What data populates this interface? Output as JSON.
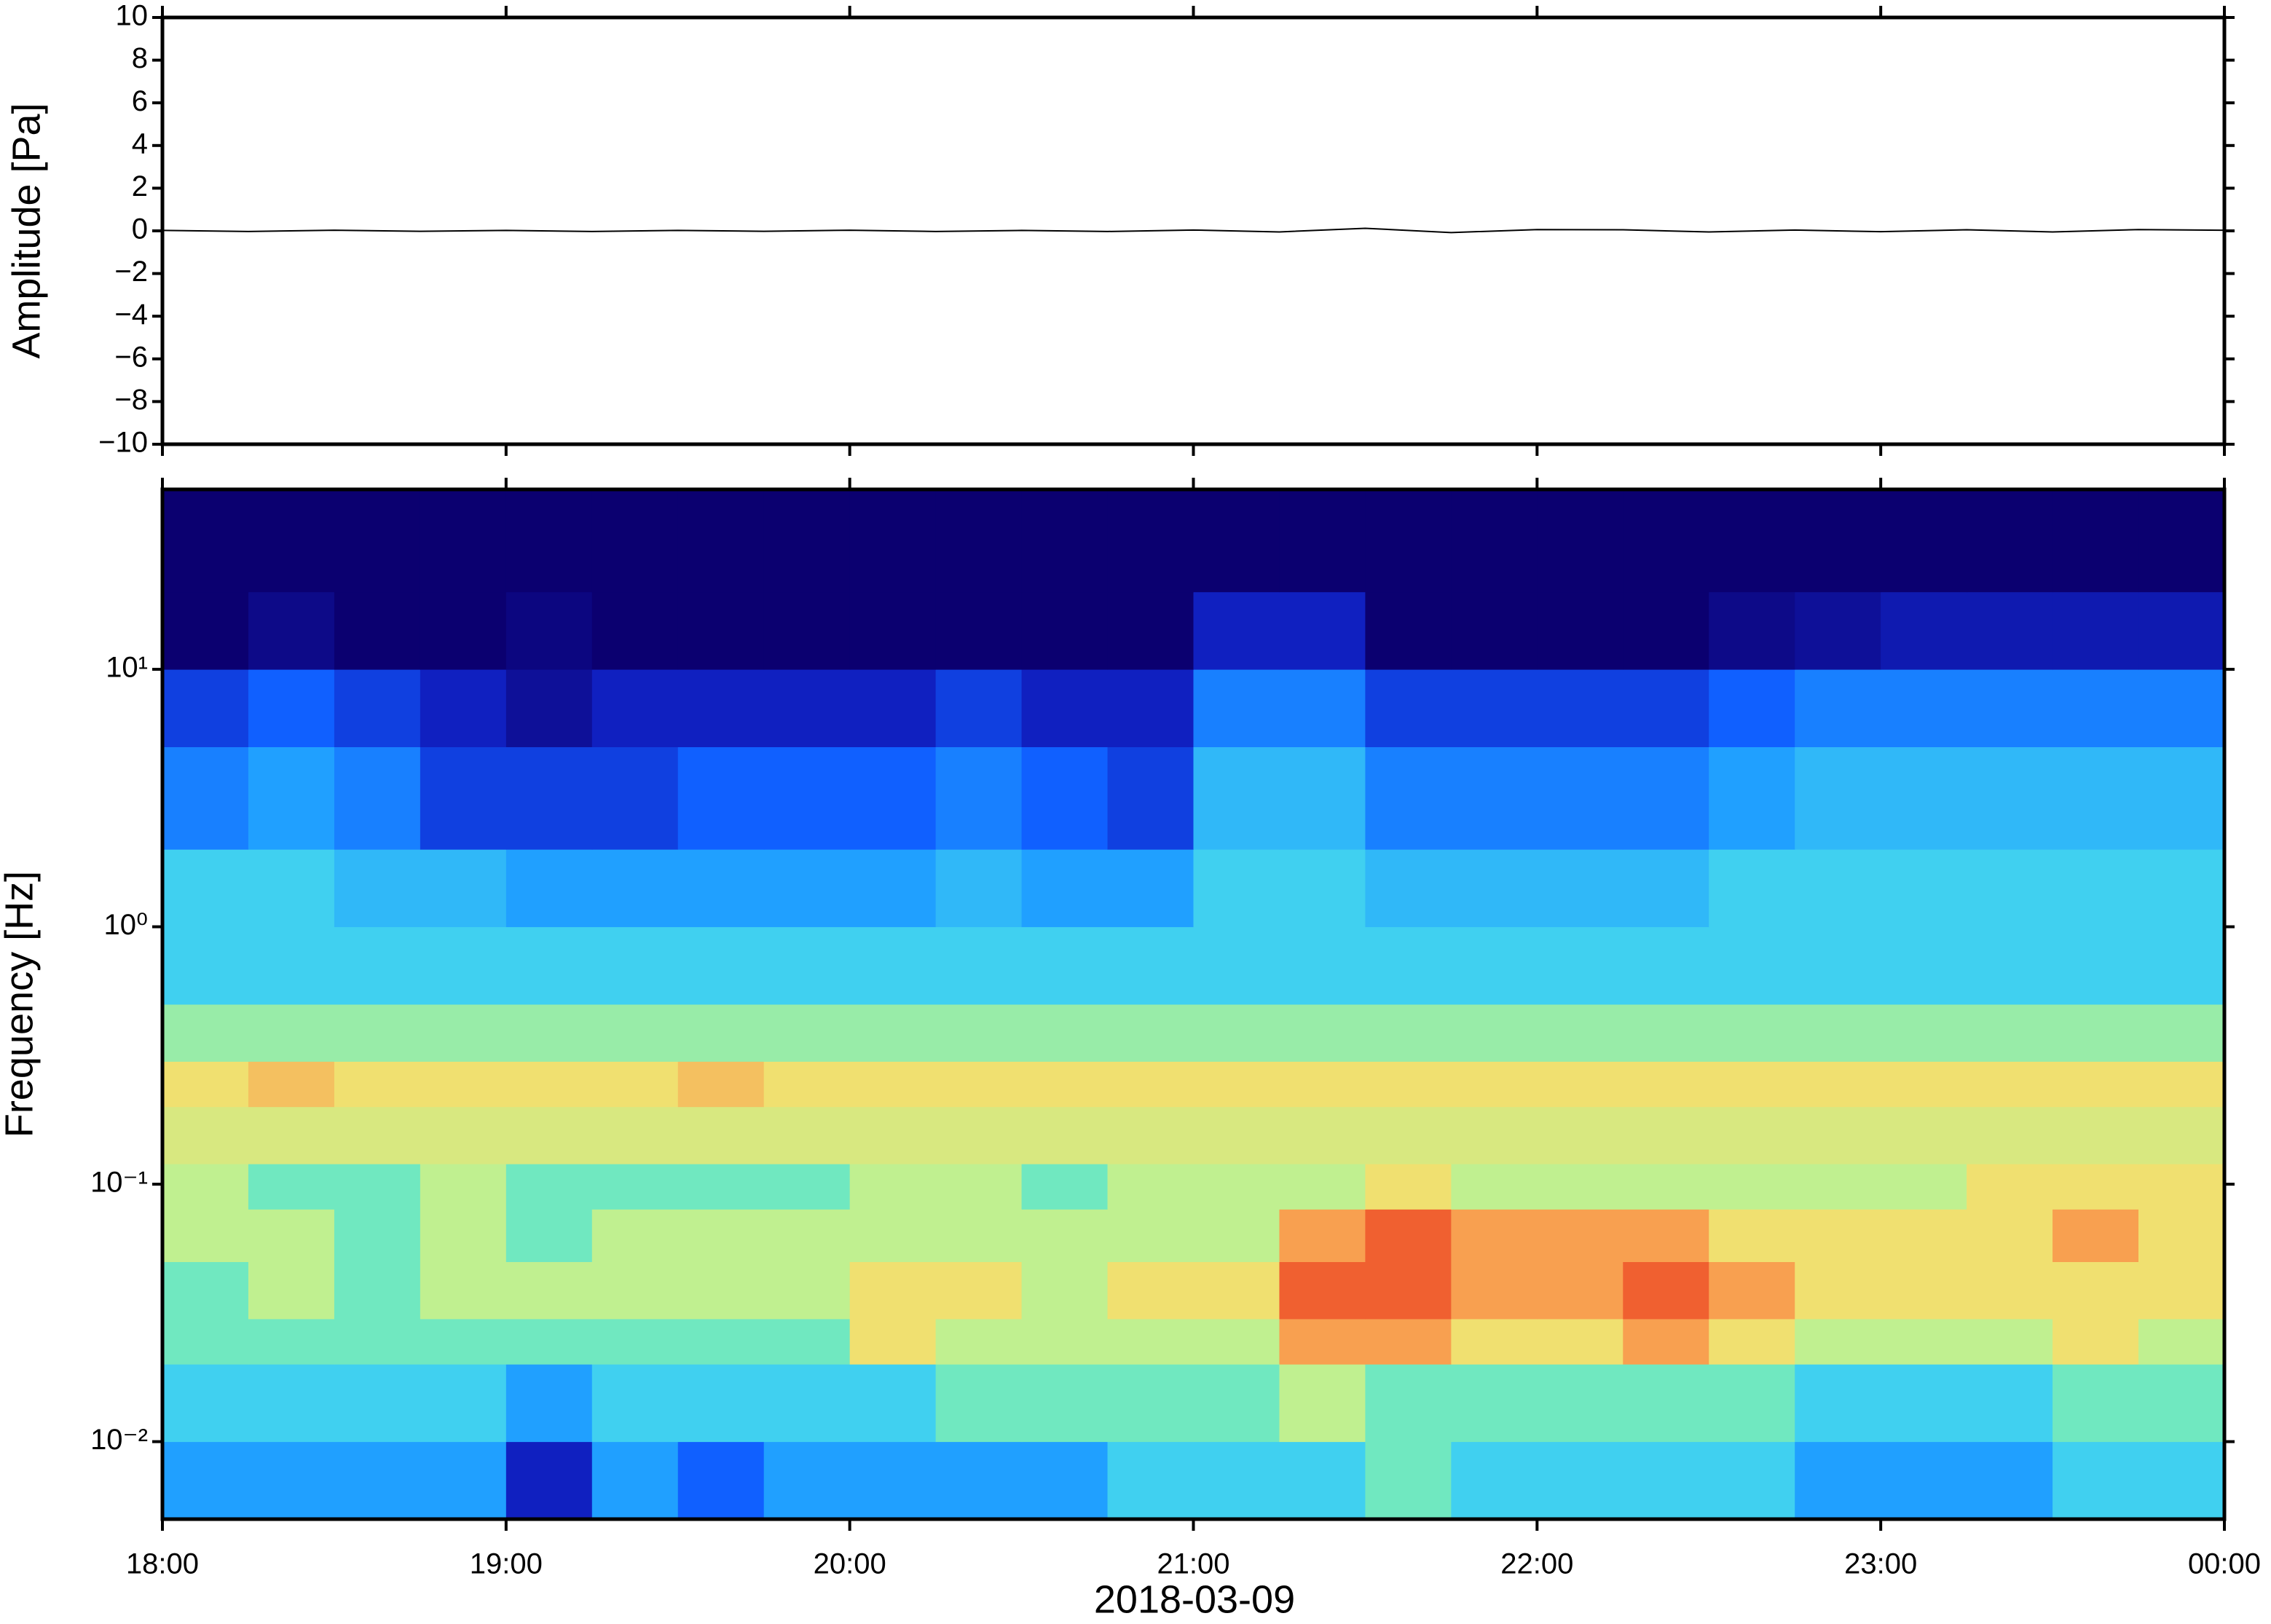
{
  "chart_data": [
    {
      "type": "line",
      "ylabel": "Amplitude [Pa]",
      "x": [
        18,
        18.25,
        18.5,
        18.75,
        19,
        19.25,
        19.5,
        19.75,
        20,
        20.25,
        20.5,
        20.75,
        21,
        21.25,
        21.5,
        21.75,
        22,
        22.25,
        22.5,
        22.75,
        23,
        23.25,
        23.5,
        23.75,
        24
      ],
      "series": [
        {
          "color": "#000000",
          "values": [
            0.02,
            -0.03,
            0.03,
            -0.02,
            0.02,
            -0.03,
            0.02,
            -0.02,
            0.03,
            -0.03,
            0.02,
            -0.03,
            0.04,
            -0.05,
            0.12,
            -0.08,
            0.06,
            0.05,
            -0.05,
            0.04,
            -0.04,
            0.05,
            -0.05,
            0.06,
            0.03
          ]
        }
      ],
      "xlim": [
        18,
        24
      ],
      "ylim": [
        -10,
        10
      ],
      "yticks": [
        10,
        8,
        6,
        4,
        2,
        0,
        {
          "value": -2,
          "label": "−2"
        },
        {
          "value": -4,
          "label": "−4"
        },
        {
          "value": -6,
          "label": "−6"
        },
        {
          "value": -8,
          "label": "−8"
        },
        {
          "value": -10,
          "label": "−10"
        }
      ]
    },
    {
      "type": "heatmap",
      "ylabel": "Frequency [Hz]",
      "xlabel": "2018-03-09",
      "xbins": [
        18,
        18.25,
        18.5,
        18.75,
        19,
        19.25,
        19.5,
        19.75,
        20,
        20.25,
        20.5,
        20.75,
        21,
        21.25,
        21.5,
        21.75,
        22,
        22.25,
        22.5,
        22.75,
        23,
        23.25,
        23.5,
        23.75,
        24
      ],
      "ybins": [
        0.005,
        0.01,
        0.02,
        0.03,
        0.05,
        0.08,
        0.12,
        0.2,
        0.3,
        0.5,
        1,
        2,
        5,
        10,
        20,
        50
      ],
      "z": [
        [
          3,
          3,
          3,
          3,
          1,
          3,
          2,
          3,
          3,
          3,
          3,
          4,
          4,
          4,
          5,
          4,
          4,
          4,
          4,
          3,
          3,
          3,
          4,
          4
        ],
        [
          4,
          4,
          4,
          4,
          3,
          4,
          4,
          4,
          4,
          5,
          5,
          5,
          5,
          6,
          5,
          5,
          5,
          5,
          5,
          4,
          4,
          4,
          5,
          5
        ],
        [
          5,
          5,
          5,
          5,
          5,
          5,
          5,
          5,
          7,
          6,
          6,
          6,
          6,
          8,
          8,
          7,
          7,
          8,
          7,
          6,
          6,
          6,
          7,
          6
        ],
        [
          5,
          6,
          5,
          6,
          6,
          6,
          6,
          6,
          7,
          7,
          6,
          7,
          7,
          9,
          9,
          8,
          8,
          9,
          8,
          7,
          7,
          7,
          7,
          7
        ],
        [
          6,
          6,
          5,
          6,
          5,
          6,
          6,
          6,
          6,
          6,
          6,
          6,
          6,
          8,
          9,
          8,
          8,
          8,
          7,
          7,
          7,
          7,
          8,
          7
        ],
        [
          6,
          5,
          5,
          6,
          5,
          5,
          5,
          5,
          6,
          6,
          5,
          6,
          6,
          6,
          7,
          6,
          6,
          6,
          6,
          6,
          6,
          7,
          7,
          7
        ],
        [
          6.5,
          6.5,
          6.5,
          6.5,
          6.5,
          6.5,
          6.5,
          6.5,
          6.5,
          6.5,
          6.5,
          6.5,
          6.5,
          6.5,
          6.5,
          6.5,
          6.5,
          6.5,
          6.5,
          6.5,
          6.5,
          6.5,
          6.5,
          6.5
        ],
        [
          7,
          7.5,
          7,
          7,
          7,
          7,
          7.5,
          7,
          7,
          7,
          7,
          7,
          7,
          7,
          7,
          7,
          7,
          7,
          7,
          7,
          7,
          7,
          7,
          7
        ],
        [
          5.5,
          5.5,
          5.5,
          5.5,
          5.5,
          5.5,
          5.5,
          5.5,
          5.5,
          5.5,
          5.5,
          5.5,
          5.5,
          5.5,
          5.5,
          5.5,
          5.5,
          5.5,
          5.5,
          5.5,
          5.5,
          5.5,
          5.5,
          5.5
        ],
        [
          4,
          4,
          4,
          4,
          4,
          4,
          4,
          4,
          4,
          4,
          4,
          4,
          4,
          4,
          4,
          4,
          4,
          4,
          4,
          4,
          4,
          4,
          4,
          4
        ],
        [
          4,
          4,
          3.5,
          3.5,
          3,
          3,
          3,
          3,
          3,
          3.5,
          3,
          3,
          4,
          4,
          3.5,
          3.5,
          3.5,
          3.5,
          4,
          4,
          4,
          4,
          4,
          4
        ],
        [
          2.5,
          3,
          2.5,
          1.5,
          1.5,
          1.5,
          2,
          2,
          2,
          2.5,
          2,
          1.5,
          3.5,
          3.5,
          2.5,
          2.5,
          2.5,
          2.5,
          3,
          3.5,
          3.5,
          3.5,
          3.5,
          3.5
        ],
        [
          1.5,
          2,
          1.5,
          1,
          0.5,
          1,
          1,
          1,
          1,
          1.5,
          1,
          1,
          2.5,
          2.5,
          1.5,
          1.5,
          1.5,
          1.5,
          2,
          2.5,
          2.5,
          2.5,
          2.5,
          2.5
        ],
        [
          0,
          0.3,
          0,
          0,
          0.2,
          0,
          0,
          0,
          0,
          0,
          0,
          0,
          1,
          1,
          0,
          0,
          0,
          0,
          0.3,
          0.5,
          0.8,
          0.8,
          0.8,
          0.8
        ],
        [
          0,
          0,
          0,
          0,
          0,
          0,
          0,
          0,
          0,
          0,
          0,
          0,
          0,
          0,
          0,
          0,
          0,
          0,
          0,
          0,
          0,
          0,
          0,
          0
        ]
      ],
      "zlim": [
        0,
        10
      ],
      "colormap": [
        "#0b0070",
        "#1020c0",
        "#1060ff",
        "#20a0ff",
        "#40d0f0",
        "#70e8c0",
        "#c0f090",
        "#f0e070",
        "#f8a050",
        "#f06030",
        "#d02010"
      ],
      "ylog": true,
      "xlim": [
        18,
        24
      ],
      "ylim": [
        0.005,
        50
      ],
      "yticks": [
        {
          "value": 0.01,
          "label": "10⁻²"
        },
        {
          "value": 0.1,
          "label": "10⁻¹"
        },
        {
          "value": 1,
          "label": "10⁰"
        },
        {
          "value": 10,
          "label": "10¹"
        }
      ],
      "xticks": [
        {
          "value": 18,
          "label": "18:00"
        },
        {
          "value": 19,
          "label": "19:00"
        },
        {
          "value": 20,
          "label": "20:00"
        },
        {
          "value": 21,
          "label": "21:00"
        },
        {
          "value": 22,
          "label": "22:00"
        },
        {
          "value": 23,
          "label": "23:00"
        },
        {
          "value": 24,
          "label": "00:00"
        }
      ]
    }
  ]
}
